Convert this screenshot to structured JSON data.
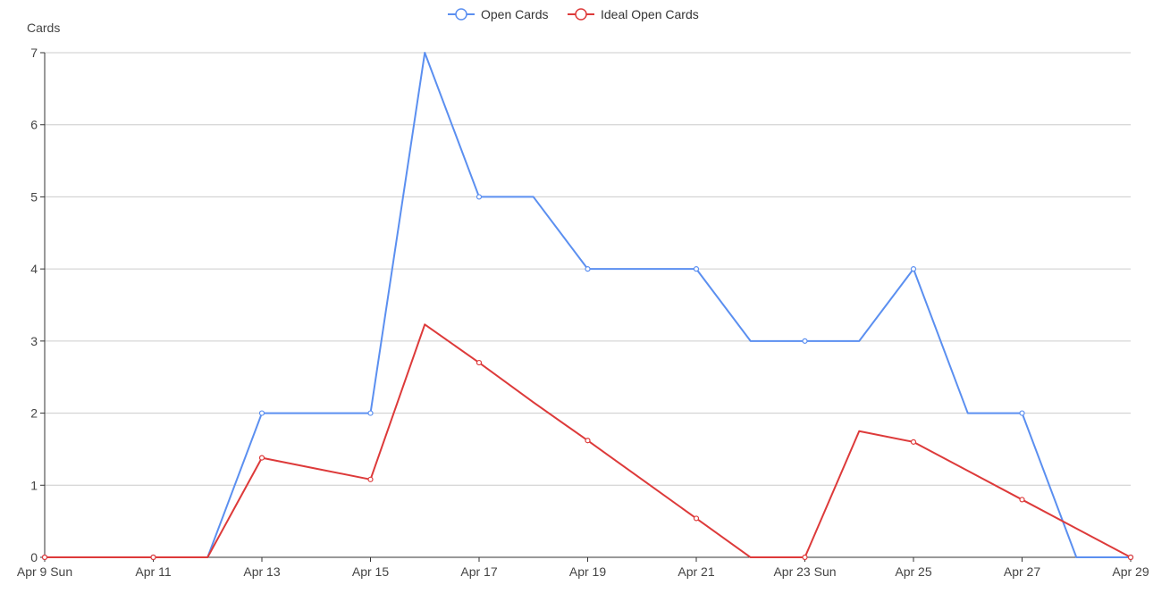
{
  "chart_data": {
    "type": "line",
    "y_axis_title": "Cards",
    "ylim": [
      0,
      7
    ],
    "y_ticks": [
      0,
      1,
      2,
      3,
      4,
      5,
      6,
      7
    ],
    "grid": true,
    "legend_position": "top-center",
    "x_tick_labels": [
      "Apr 9 Sun",
      "Apr 11",
      "Apr 13",
      "Apr 15",
      "Apr 17",
      "Apr 19",
      "Apr 21",
      "Apr 23 Sun",
      "Apr 25",
      "Apr 27",
      "Apr 29"
    ],
    "x": [
      "Apr 9",
      "Apr 10",
      "Apr 11",
      "Apr 12",
      "Apr 13",
      "Apr 14",
      "Apr 15",
      "Apr 16",
      "Apr 17",
      "Apr 18",
      "Apr 19",
      "Apr 20",
      "Apr 21",
      "Apr 22",
      "Apr 23",
      "Apr 24",
      "Apr 25",
      "Apr 26",
      "Apr 27",
      "Apr 28",
      "Apr 29"
    ],
    "series": [
      {
        "name": "Open Cards",
        "color": "#5b8ff0",
        "values": [
          0,
          0,
          0,
          0,
          2,
          2,
          2,
          7,
          5,
          5,
          4,
          4,
          4,
          3,
          3,
          3,
          4,
          2,
          2,
          0,
          0
        ]
      },
      {
        "name": "Ideal Open Cards",
        "color": "#dd3a3a",
        "values": [
          0,
          0,
          0,
          0,
          1.38,
          1.23,
          1.08,
          3.23,
          2.7,
          2.15,
          1.62,
          1.08,
          0.54,
          0,
          0,
          1.75,
          1.6,
          1.2,
          0.8,
          0.4,
          0
        ]
      }
    ]
  }
}
